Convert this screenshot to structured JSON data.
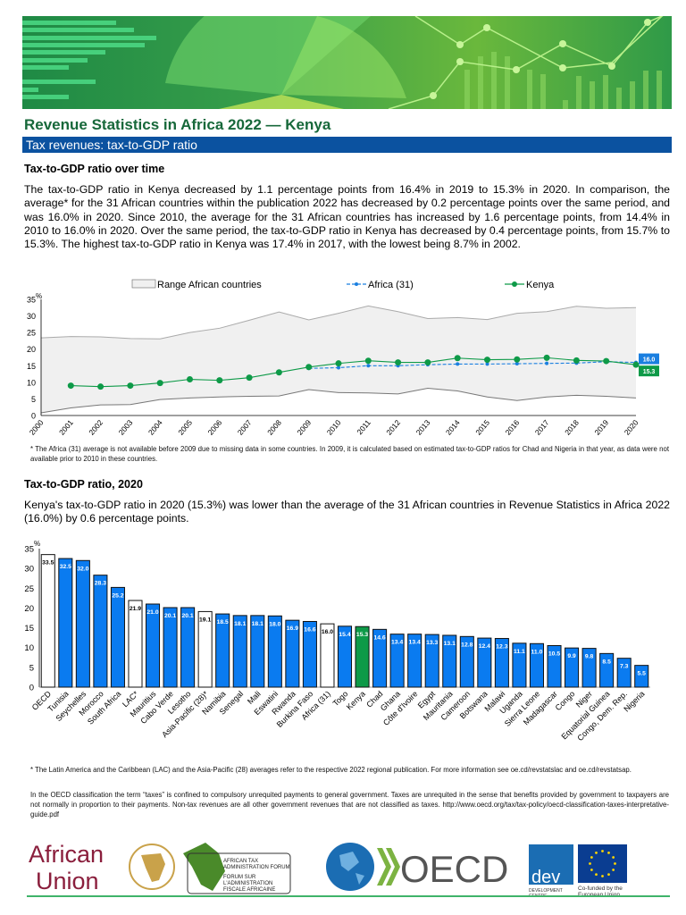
{
  "header": {
    "title": "Revenue Statistics in Africa 2022  —  Kenya",
    "section": "Tax revenues: tax-to-GDP ratio"
  },
  "section1": {
    "heading": "Tax-to-GDP ratio over time",
    "paragraph": "The tax-to-GDP ratio in Kenya decreased by 1.1 percentage points from 16.4% in 2019 to 15.3% in 2020. In comparison, the average* for the 31 African countries within the publication 2022 has decreased by 0.2 percentage points over the same period, and was 16.0% in 2020. Since 2010, the average for the 31 African countries has increased by 1.6 percentage points, from 14.4% in 2010 to 16.0% in 2020. Over the same period, the tax-to-GDP ratio in Kenya has decreased by 0.4 percentage points, from 15.7% to 15.3%. The highest tax-to-GDP ratio in Kenya was 17.4% in 2017, with the lowest being 8.7% in 2002.",
    "footnote": "* The Africa (31) average is not available before 2009 due to missing data in some countries. In 2009, it is calculated based on estimated tax-to-GDP ratios for Chad and Nigeria in that year, as data were not available prior to 2010 in these countries."
  },
  "section2": {
    "heading": "Tax-to-GDP ratio, 2020",
    "paragraph": "Kenya's tax-to-GDP ratio in 2020 (15.3%) was lower than the average of the 31 African countries in Revenue Statistics in Africa 2022 (16.0%) by 0.6 percentage points.",
    "footnote": "* The Latin America and the Caribbean (LAC) and the Asia-Pacific (28) averages refer to the respective 2022 regional publication. For more information see oe.cd/revstatslac and oe.cd/revstatsap.",
    "definition": "In the OECD classification the term “taxes” is confined to compulsory unrequited payments to general government. Taxes are unrequited in the sense that benefits provided by government to taxpayers are not normally in proportion to their payments. Non-tax revenues are all other government revenues that are not classified as taxes.",
    "link": "http://www.oecd.org/tax/tax-policy/oecd-classification-taxes-interpretative-guide.pdf"
  },
  "logos": {
    "au": "African Union",
    "ataf": "AFRICAN TAX ADMINISTRATION FORUM / FORUM SUR L'ADMINISTRATION FISCALE AFRICAINE",
    "oecd": "OECD",
    "dev": "dev",
    "dev_sub": "DEVELOPMENT CENTRE",
    "eu": "Co-funded by the European Union"
  },
  "chart_data": [
    {
      "type": "line",
      "ylabel": "%",
      "ylim": [
        0,
        35
      ],
      "yticks": [
        0,
        5,
        10,
        15,
        20,
        25,
        30,
        35
      ],
      "x": [
        2000,
        2001,
        2002,
        2003,
        2004,
        2005,
        2006,
        2007,
        2008,
        2009,
        2010,
        2011,
        2012,
        2013,
        2014,
        2015,
        2016,
        2017,
        2018,
        2019,
        2020
      ],
      "legend_position": "top",
      "range": {
        "name": "Range African countries",
        "color": "#f0f0f0",
        "upper": [
          23.4,
          23.8,
          23.7,
          23.2,
          23.1,
          25.0,
          26.3,
          28.7,
          31.2,
          28.8,
          30.8,
          33.0,
          31.3,
          29.2,
          29.5,
          28.9,
          30.8,
          31.3,
          32.9,
          32.3,
          32.5
        ],
        "lower": [
          0.8,
          2.3,
          3.2,
          3.3,
          4.8,
          5.3,
          5.6,
          5.8,
          5.9,
          7.8,
          6.9,
          6.8,
          6.5,
          8.2,
          7.4,
          5.6,
          4.5,
          5.6,
          6.1,
          5.8,
          5.3
        ]
      },
      "series": [
        {
          "name": "Africa (31)",
          "color": "#1a7fe0",
          "values": [
            null,
            null,
            null,
            null,
            null,
            null,
            null,
            null,
            null,
            14.2,
            14.4,
            15.0,
            15.0,
            15.3,
            15.5,
            15.5,
            15.6,
            15.7,
            15.8,
            16.2,
            16.0
          ],
          "end_label": "16.0"
        },
        {
          "name": "Kenya",
          "color": "#0e9a48",
          "values": [
            null,
            9.0,
            8.7,
            9.0,
            9.8,
            10.9,
            10.6,
            11.4,
            13.0,
            14.6,
            15.7,
            16.5,
            16.0,
            16.0,
            17.3,
            16.8,
            16.9,
            17.4,
            16.6,
            16.4,
            15.3
          ],
          "end_label": "15.3"
        }
      ]
    },
    {
      "type": "bar",
      "ylabel": "%",
      "ylim": [
        0,
        35
      ],
      "yticks": [
        0,
        5,
        10,
        15,
        20,
        25,
        30,
        35
      ],
      "categories": [
        "OECD",
        "Tunisia",
        "Seychelles",
        "Morocco",
        "South Africa",
        "LAC*",
        "Mauritius",
        "Cabo Verde",
        "Lesotho",
        "Asia-Pacific (28)*",
        "Namibia",
        "Senegal",
        "Mali",
        "Eswatini",
        "Rwanda",
        "Burkina Faso",
        "Africa (31)",
        "Togo",
        "Kenya",
        "Chad",
        "Ghana",
        "Côte d'Ivoire",
        "Egypt",
        "Mauritania",
        "Cameroon",
        "Botswana",
        "Malawi",
        "Uganda",
        "Sierra Leone",
        "Madagascar",
        "Congo",
        "Niger",
        "Equatorial Guinea",
        "Congo, Dem. Rep.",
        "Nigeria"
      ],
      "values": [
        33.5,
        32.5,
        32.0,
        28.3,
        25.2,
        21.9,
        21.0,
        20.1,
        20.1,
        19.1,
        18.5,
        18.1,
        18.1,
        18.0,
        16.9,
        16.6,
        16.0,
        15.4,
        15.3,
        14.6,
        13.4,
        13.4,
        13.3,
        13.1,
        12.8,
        12.4,
        12.3,
        11.1,
        11.0,
        10.5,
        9.9,
        9.8,
        8.5,
        7.3,
        5.5
      ],
      "value_labels": [
        "33.5",
        "32.5",
        "32.0",
        "28.3",
        "25.2",
        "21.9",
        "21.0",
        "20.1",
        "20.1",
        "19.1",
        "18.5",
        "18.1",
        "18.1",
        "18.0",
        "16.9",
        "16.6",
        "16.0",
        "15.4",
        "15.3",
        "14.6",
        "13.4",
        "13.4",
        "13.3",
        "13.1",
        "12.8",
        "12.4",
        "12.3",
        "11.1",
        "11.0",
        "10.5",
        "9.9",
        "9.8",
        "8.5",
        "7.3",
        "5.5"
      ],
      "kinds": [
        "avg",
        "c",
        "c",
        "c",
        "c",
        "avg",
        "c",
        "c",
        "c",
        "avg",
        "c",
        "c",
        "c",
        "c",
        "c",
        "c",
        "avg",
        "c",
        "kenya",
        "c",
        "c",
        "c",
        "c",
        "c",
        "c",
        "c",
        "c",
        "c",
        "c",
        "c",
        "c",
        "c",
        "c",
        "c",
        "c"
      ],
      "colors": {
        "c": "#0a7bf0",
        "avg": "#ffffff",
        "kenya": "#0e9a48"
      }
    }
  ]
}
